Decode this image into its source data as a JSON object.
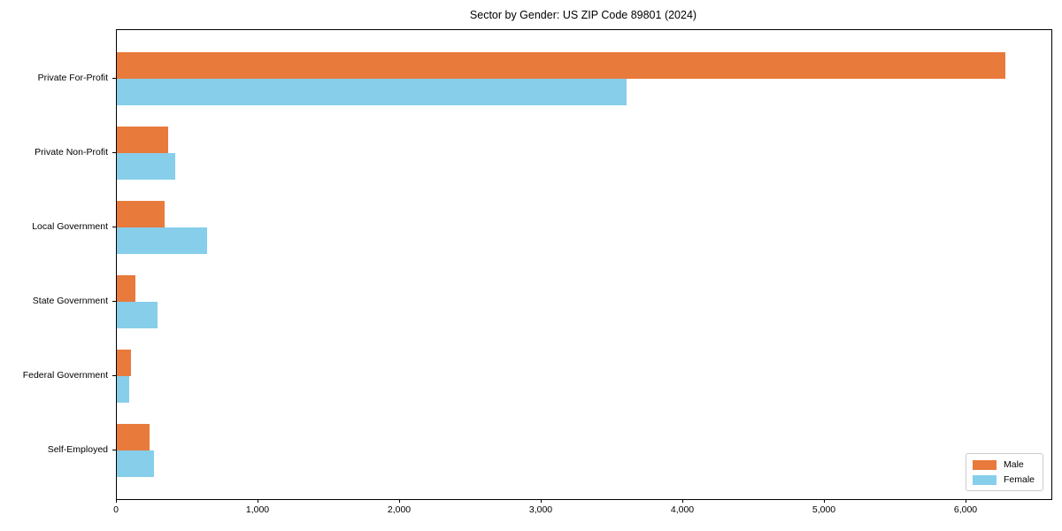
{
  "chart_data": {
    "type": "bar",
    "orientation": "horizontal",
    "title": "Sector by Gender: US ZIP Code 89801 (2024)",
    "categories": [
      "Private For-Profit",
      "Private Non-Profit",
      "Local Government",
      "State Government",
      "Federal Government",
      "Self-Employed"
    ],
    "series": [
      {
        "name": "Male",
        "color": "#e87a3c",
        "values": [
          6275,
          365,
          335,
          130,
          100,
          230
        ]
      },
      {
        "name": "Female",
        "color": "#87ceeb",
        "values": [
          3600,
          410,
          640,
          285,
          85,
          265
        ]
      }
    ],
    "xlabel": "",
    "ylabel": "",
    "xlim": [
      0,
      6600
    ],
    "x_ticks": [
      0,
      1000,
      2000,
      3000,
      4000,
      5000,
      6000
    ],
    "x_tick_labels": [
      "0",
      "1,000",
      "2,000",
      "3,000",
      "4,000",
      "5,000",
      "6,000"
    ],
    "grid": false,
    "legend": {
      "position": "lower right",
      "entries": [
        "Male",
        "Female"
      ]
    }
  }
}
